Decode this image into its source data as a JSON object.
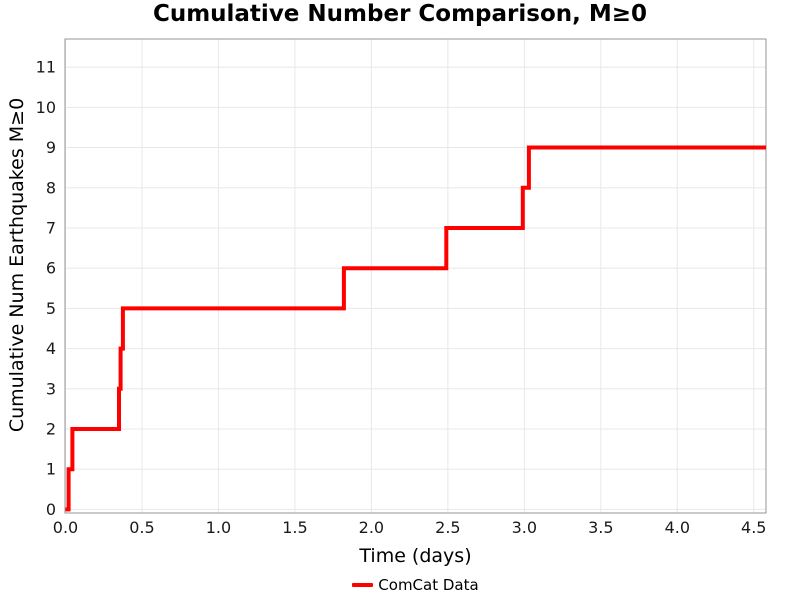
{
  "header": {
    "title": "Cumulative Number Comparison, M≥0"
  },
  "chart_data": {
    "type": "line",
    "line_style": "step-post",
    "title": "Cumulative Number Comparison, M≥0",
    "xlabel": "Time (days)",
    "ylabel": "Cumulative Num Earthquakes M≥0",
    "xlim": [
      0,
      4.58
    ],
    "ylim": [
      -0.09,
      11.7
    ],
    "xtick_values": [
      0,
      0.5,
      1,
      1.5,
      2,
      2.5,
      3,
      3.5,
      4,
      4.5
    ],
    "xtick_labels": [
      "0.0",
      "0.5",
      "1.0",
      "1.5",
      "2.0",
      "2.5",
      "3.0",
      "3.5",
      "4.0",
      "4.5"
    ],
    "ytick_values": [
      0,
      1,
      2,
      3,
      4,
      5,
      6,
      7,
      8,
      9,
      10,
      11
    ],
    "ytick_labels": [
      "0",
      "1",
      "2",
      "3",
      "4",
      "5",
      "6",
      "7",
      "8",
      "9",
      "10",
      "11"
    ],
    "grid": true,
    "legend_position": "bottom-center",
    "series": [
      {
        "name": "ComCat Data",
        "color": "#ff0000",
        "line_width": 4,
        "step": "post",
        "x": [
          0,
          0.02,
          0.045,
          0.35,
          0.36,
          0.375,
          1.82,
          2.49,
          2.99,
          3.03,
          4.58
        ],
        "y": [
          0,
          1,
          2,
          3,
          4,
          5,
          6,
          7,
          8,
          9,
          9
        ]
      }
    ]
  },
  "colors": {
    "line_red": "#ff0000",
    "grid": "#e8e8e8",
    "frame": "#969696",
    "tick_text": "#1a1a1a"
  }
}
